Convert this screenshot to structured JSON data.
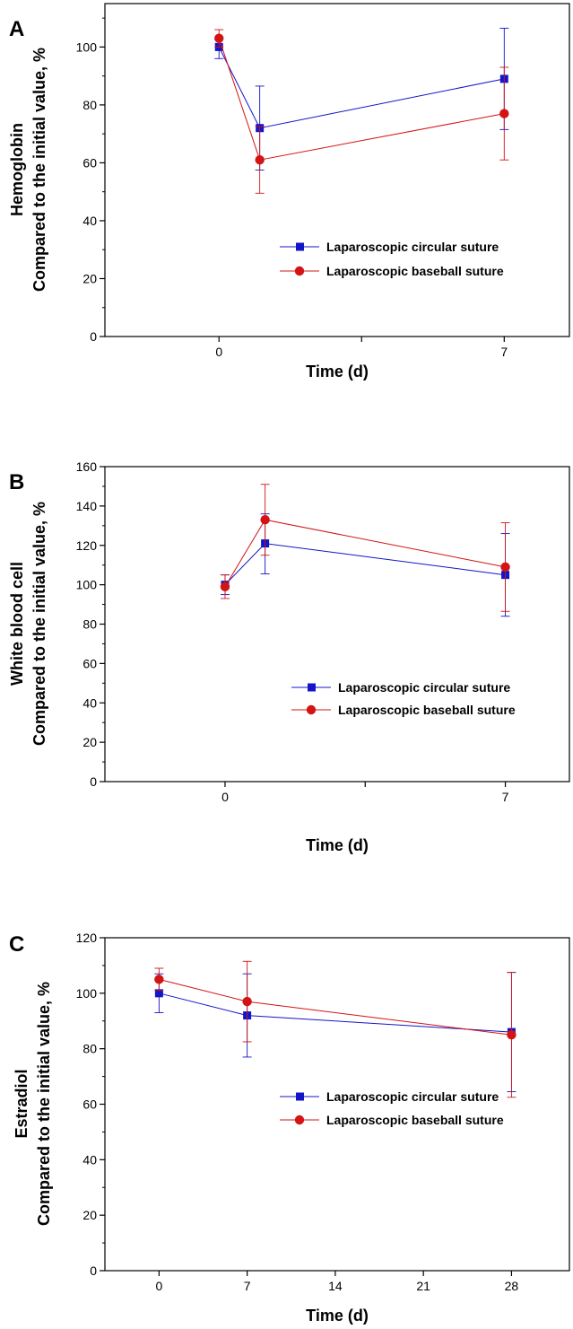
{
  "colors": {
    "circular": "#1414c8",
    "baseball": "#d21414",
    "axis": "#000000"
  },
  "chart_data": [
    {
      "type": "line",
      "panel_label": "A",
      "title": "",
      "ylabel_line1": "Hemoglobin",
      "ylabel_line2": "Compared to the initial value, %",
      "xlabel": "Time (d)",
      "xlim": [
        -2.8,
        8.6
      ],
      "ylim": [
        0,
        115
      ],
      "xticks": [
        0,
        3.5,
        7
      ],
      "xtick_labels": [
        "0",
        "",
        "7"
      ],
      "yticks": [
        0,
        20,
        40,
        60,
        80,
        100
      ],
      "yminor": [
        10,
        30,
        50,
        70,
        90,
        110
      ],
      "legend_position": "lower-right",
      "series": [
        {
          "name": "Laparoscopic circular suture",
          "color_key": "circular",
          "marker": "square",
          "x": [
            0,
            1,
            7
          ],
          "y": [
            100,
            72,
            89
          ],
          "err_hi": [
            3,
            14.5,
            17.5
          ],
          "err_lo": [
            4,
            14.5,
            17.5
          ]
        },
        {
          "name": "Laparoscopic baseball suture",
          "color_key": "baseball",
          "marker": "circle",
          "x": [
            0,
            1,
            7
          ],
          "y": [
            103,
            61,
            77
          ],
          "err_hi": [
            3,
            11.5,
            16
          ],
          "err_lo": [
            3,
            11.5,
            16
          ]
        }
      ]
    },
    {
      "type": "line",
      "panel_label": "B",
      "title": "",
      "ylabel_line1": "White blood cell",
      "ylabel_line2": "Compared to the initial value, %",
      "xlabel": "Time (d)",
      "xlim": [
        -3,
        8.6
      ],
      "ylim": [
        0,
        160
      ],
      "xticks": [
        0,
        3.5,
        7
      ],
      "xtick_labels": [
        "0",
        "",
        "7"
      ],
      "yticks": [
        0,
        20,
        40,
        60,
        80,
        100,
        120,
        140,
        160
      ],
      "yminor": [
        10,
        30,
        50,
        70,
        90,
        110,
        130,
        150
      ],
      "legend_position": "lower-right",
      "series": [
        {
          "name": "Laparoscopic circular suture",
          "color_key": "circular",
          "marker": "square",
          "x": [
            0,
            1,
            7
          ],
          "y": [
            100,
            121,
            105
          ],
          "err_hi": [
            5,
            15,
            21
          ],
          "err_lo": [
            5,
            15.5,
            21
          ]
        },
        {
          "name": "Laparoscopic baseball suture",
          "color_key": "baseball",
          "marker": "circle",
          "x": [
            0,
            1,
            7
          ],
          "y": [
            99,
            133,
            109
          ],
          "err_hi": [
            6,
            18,
            22.5
          ],
          "err_lo": [
            6,
            18,
            22.5
          ]
        }
      ]
    },
    {
      "type": "line",
      "panel_label": "C",
      "title": "",
      "ylabel_line1": "Estradiol",
      "ylabel_line2": "Compared to the initial value, %",
      "xlabel": "Time (d)",
      "xlim": [
        -4.3,
        32.6
      ],
      "ylim": [
        0,
        120
      ],
      "xticks": [
        0,
        7,
        14,
        21,
        28
      ],
      "xtick_labels": [
        "0",
        "7",
        "14",
        "21",
        "28"
      ],
      "yticks": [
        0,
        20,
        40,
        60,
        80,
        100,
        120
      ],
      "yminor": [
        10,
        30,
        50,
        70,
        90,
        110
      ],
      "legend_position": "center-right",
      "series": [
        {
          "name": "Laparoscopic circular suture",
          "color_key": "circular",
          "marker": "square",
          "x": [
            0,
            7,
            28
          ],
          "y": [
            100,
            92,
            86
          ],
          "err_hi": [
            7,
            15,
            21.5
          ],
          "err_lo": [
            7,
            15,
            21.5
          ]
        },
        {
          "name": "Laparoscopic baseball suture",
          "color_key": "baseball",
          "marker": "circle",
          "x": [
            0,
            7,
            28
          ],
          "y": [
            105,
            97,
            85
          ],
          "err_hi": [
            4,
            14.5,
            22.5
          ],
          "err_lo": [
            4,
            14.5,
            22.5
          ]
        }
      ]
    }
  ]
}
